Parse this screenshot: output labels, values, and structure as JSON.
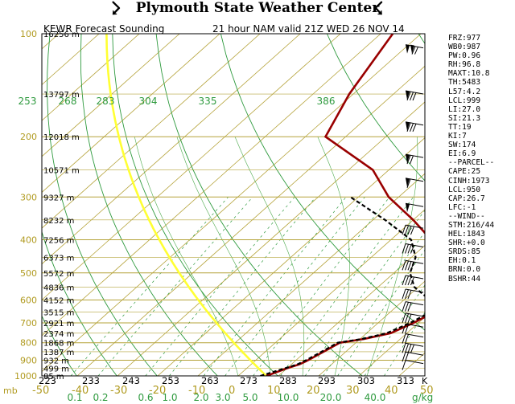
{
  "header": {
    "title": "Plymouth State Weather Center",
    "subtitle_left": "KEWR Forecast Sounding",
    "subtitle_right": "21 hour NAM valid 21Z WED 26 NOV 14"
  },
  "chart_data": {
    "type": "line",
    "title": "KEWR Forecast Sounding",
    "subtitle": "21 hour NAM valid 21Z WED 26 NOV 14",
    "y_axis": {
      "ticks": [
        100,
        200,
        300,
        400,
        500,
        600,
        700,
        800,
        900,
        1000
      ],
      "range": [
        100,
        1000
      ]
    },
    "height_labels": [
      {
        "p": 100,
        "label": "16256 m"
      },
      {
        "p": 150,
        "label": "13797 m"
      },
      {
        "p": 200,
        "label": "12018 m"
      },
      {
        "p": 250,
        "label": "10571 m"
      },
      {
        "p": 300,
        "label": "9327 m"
      },
      {
        "p": 350,
        "label": "8232 m"
      },
      {
        "p": 400,
        "label": "7256 m"
      },
      {
        "p": 450,
        "label": "6373 m"
      },
      {
        "p": 500,
        "label": "5572 m"
      },
      {
        "p": 550,
        "label": "4836 m"
      },
      {
        "p": 600,
        "label": "4152 m"
      },
      {
        "p": 650,
        "label": "3515 m"
      },
      {
        "p": 700,
        "label": "2921 m"
      },
      {
        "p": 750,
        "label": "2374 m"
      },
      {
        "p": 800,
        "label": "1868 m"
      },
      {
        "p": 850,
        "label": "1387 m"
      },
      {
        "p": 900,
        "label": "932 m"
      },
      {
        "p": 950,
        "label": "499 m"
      },
      {
        "p": 1000,
        "label": "85 m"
      }
    ],
    "x_axis": {
      "temperature_ticks": [
        "-50",
        "-40",
        "-30",
        "-20",
        "-10",
        "0",
        "10",
        "20",
        "30",
        "40",
        "50"
      ],
      "kelvin_ticks": [
        "223",
        "233",
        "243",
        "253",
        "263",
        "273",
        "283",
        "293",
        "303",
        "313"
      ],
      "kelvin_unit": "K",
      "mixing_ratio_ticks": [
        "0.1",
        "0.2",
        "0.6",
        "1.0",
        "2.0",
        "3.0",
        "5.0",
        "10.0",
        "20.0",
        "40.0"
      ],
      "mixing_ratio_unit": "g/kg",
      "pressure_unit": "mb"
    },
    "theta_labels": [
      "253",
      "268",
      "283",
      "304",
      "335",
      "386"
    ],
    "series": [
      {
        "name": "Temperature",
        "color": "#990000",
        "points": [
          [
            1000,
            7.0
          ],
          [
            975,
            8.5
          ],
          [
            950,
            10.0
          ],
          [
            925,
            12.0
          ],
          [
            900,
            13.0
          ],
          [
            850,
            14.5
          ],
          [
            800,
            16.0
          ],
          [
            780,
            21.0
          ],
          [
            750,
            26.0
          ],
          [
            700,
            28.8
          ],
          [
            650,
            31.0
          ],
          [
            600,
            28.0
          ],
          [
            550,
            23.0
          ],
          [
            500,
            19.5
          ],
          [
            450,
            15.0
          ],
          [
            400,
            10.0
          ],
          [
            350,
            0.0
          ],
          [
            300,
            -12.5
          ],
          [
            250,
            -24.0
          ],
          [
            200,
            -45.0
          ],
          [
            150,
            -51.0
          ],
          [
            100,
            -57.0
          ]
        ]
      },
      {
        "name": "Dew Point",
        "color": "#000000",
        "points": [
          [
            1000,
            5.5
          ],
          [
            975,
            7.5
          ],
          [
            950,
            9.5
          ],
          [
            925,
            11.5
          ],
          [
            900,
            12.5
          ],
          [
            850,
            14.0
          ],
          [
            800,
            15.5
          ],
          [
            780,
            20.5
          ],
          [
            750,
            25.0
          ],
          [
            700,
            28.0
          ],
          [
            650,
            30.0
          ],
          [
            600,
            26.5
          ],
          [
            550,
            19.0
          ],
          [
            500,
            14.0
          ],
          [
            450,
            11.0
          ],
          [
            400,
            5.0
          ],
          [
            350,
            -7.0
          ],
          [
            300,
            -22.0
          ]
        ]
      }
    ],
    "parcel_color": "#ffff33",
    "grid": true
  },
  "indices": [
    "FRZ:977",
    "WB0:987",
    "PW:0.96",
    "RH:96.8",
    "MAXT:10.8",
    "TH:5483",
    "L57:4.2",
    "LCL:999",
    "LI:27.0",
    "SI:21.3",
    "TT:19",
    "KI:7",
    "SW:174",
    "EI:6.9",
    "--PARCEL--",
    "CAPE:25",
    "CINH:1973",
    "LCL:950",
    "CAP:26.7",
    "LFC:-1",
    "--WIND--",
    "STM:216/44",
    "HEL:1843",
    "SHR:+0.0",
    "SRDS:85",
    "EH:0.1",
    "BRN:0.0",
    "BSHR:44"
  ],
  "wind_barbs": [
    {
      "p": 110,
      "flags": 2,
      "full": 2
    },
    {
      "p": 150,
      "flags": 1,
      "full": 3
    },
    {
      "p": 185,
      "flags": 1,
      "full": 3
    },
    {
      "p": 230,
      "flags": 1,
      "full": 2
    },
    {
      "p": 270,
      "flags": 1,
      "full": 1
    },
    {
      "p": 320,
      "flags": 1,
      "full": 0
    },
    {
      "p": 370,
      "flags": 0,
      "full": 4
    },
    {
      "p": 420,
      "flags": 0,
      "full": 4
    },
    {
      "p": 470,
      "flags": 0,
      "full": 4
    },
    {
      "p": 520,
      "flags": 0,
      "full": 4
    },
    {
      "p": 570,
      "flags": 0,
      "full": 3
    },
    {
      "p": 620,
      "flags": 0,
      "full": 3
    },
    {
      "p": 670,
      "flags": 0,
      "full": 3
    },
    {
      "p": 720,
      "flags": 0,
      "full": 2
    },
    {
      "p": 770,
      "flags": 0,
      "full": 2
    },
    {
      "p": 820,
      "flags": 0,
      "full": 4
    },
    {
      "p": 870,
      "flags": 0,
      "full": 2
    },
    {
      "p": 920,
      "flags": 0,
      "full": 1
    }
  ]
}
